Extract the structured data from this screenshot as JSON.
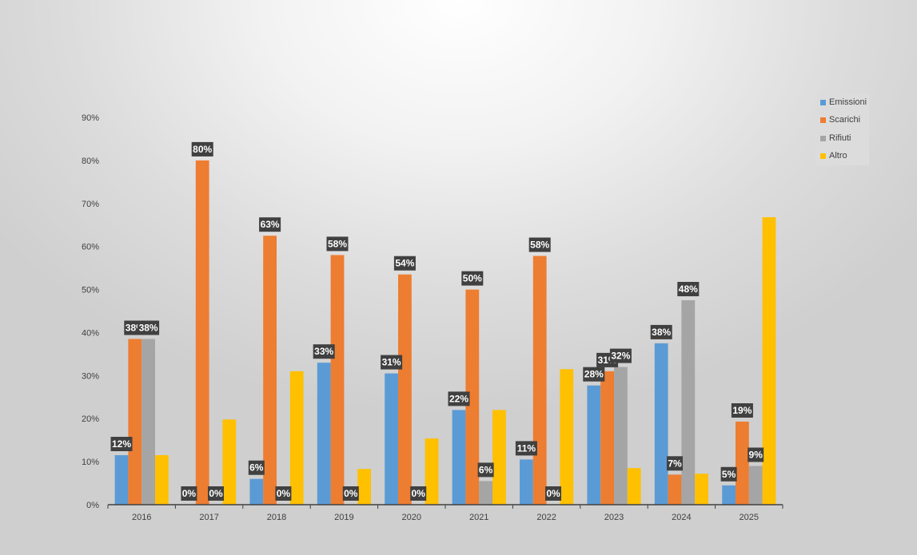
{
  "chart_data": {
    "type": "bar",
    "categories": [
      "2016",
      "2017",
      "2018",
      "2019",
      "2020",
      "2021",
      "2022",
      "2023",
      "2024",
      "2025"
    ],
    "series": [
      {
        "name": "Emissioni",
        "color": "#5b9bd5",
        "values": [
          0.115,
          0,
          0.06,
          0.33,
          0.305,
          0.22,
          0.105,
          0.277,
          0.375,
          0.045
        ],
        "labels": [
          "12%",
          "0%",
          "6%",
          "33%",
          "31%",
          "22%",
          "11%",
          "28%",
          "38%",
          "5%"
        ]
      },
      {
        "name": "Scarichi",
        "color": "#ed7d31",
        "values": [
          0.385,
          0.8,
          0.625,
          0.58,
          0.535,
          0.5,
          0.578,
          0.31,
          0.07,
          0.193
        ],
        "labels": [
          "38%",
          "80%",
          "63%",
          "58%",
          "54%",
          "50%",
          "58%",
          "31%",
          "7%",
          "19%"
        ]
      },
      {
        "name": "Rifiuti",
        "color": "#a5a5a5",
        "values": [
          0.385,
          0,
          0,
          0,
          0,
          0.055,
          0,
          0.32,
          0.475,
          0.09
        ],
        "labels": [
          "38%",
          "0%",
          "0%",
          "0%",
          "0%",
          "6%",
          "0%",
          "32%",
          "48%",
          "9%"
        ]
      },
      {
        "name": "Altro",
        "color": "#ffc000",
        "values": [
          0.115,
          0.198,
          0.31,
          0.083,
          0.154,
          0.22,
          0.315,
          0.085,
          0.072,
          0.668
        ],
        "labels": [
          null,
          null,
          null,
          null,
          null,
          null,
          null,
          null,
          null,
          null
        ]
      }
    ],
    "yticks": [
      "0%",
      "10%",
      "20%",
      "30%",
      "40%",
      "50%",
      "60%",
      "70%",
      "80%",
      "90%"
    ],
    "ylim": [
      0,
      0.9
    ],
    "legend_position": "right",
    "grid": false,
    "title": "",
    "xlabel": "",
    "ylabel": ""
  }
}
